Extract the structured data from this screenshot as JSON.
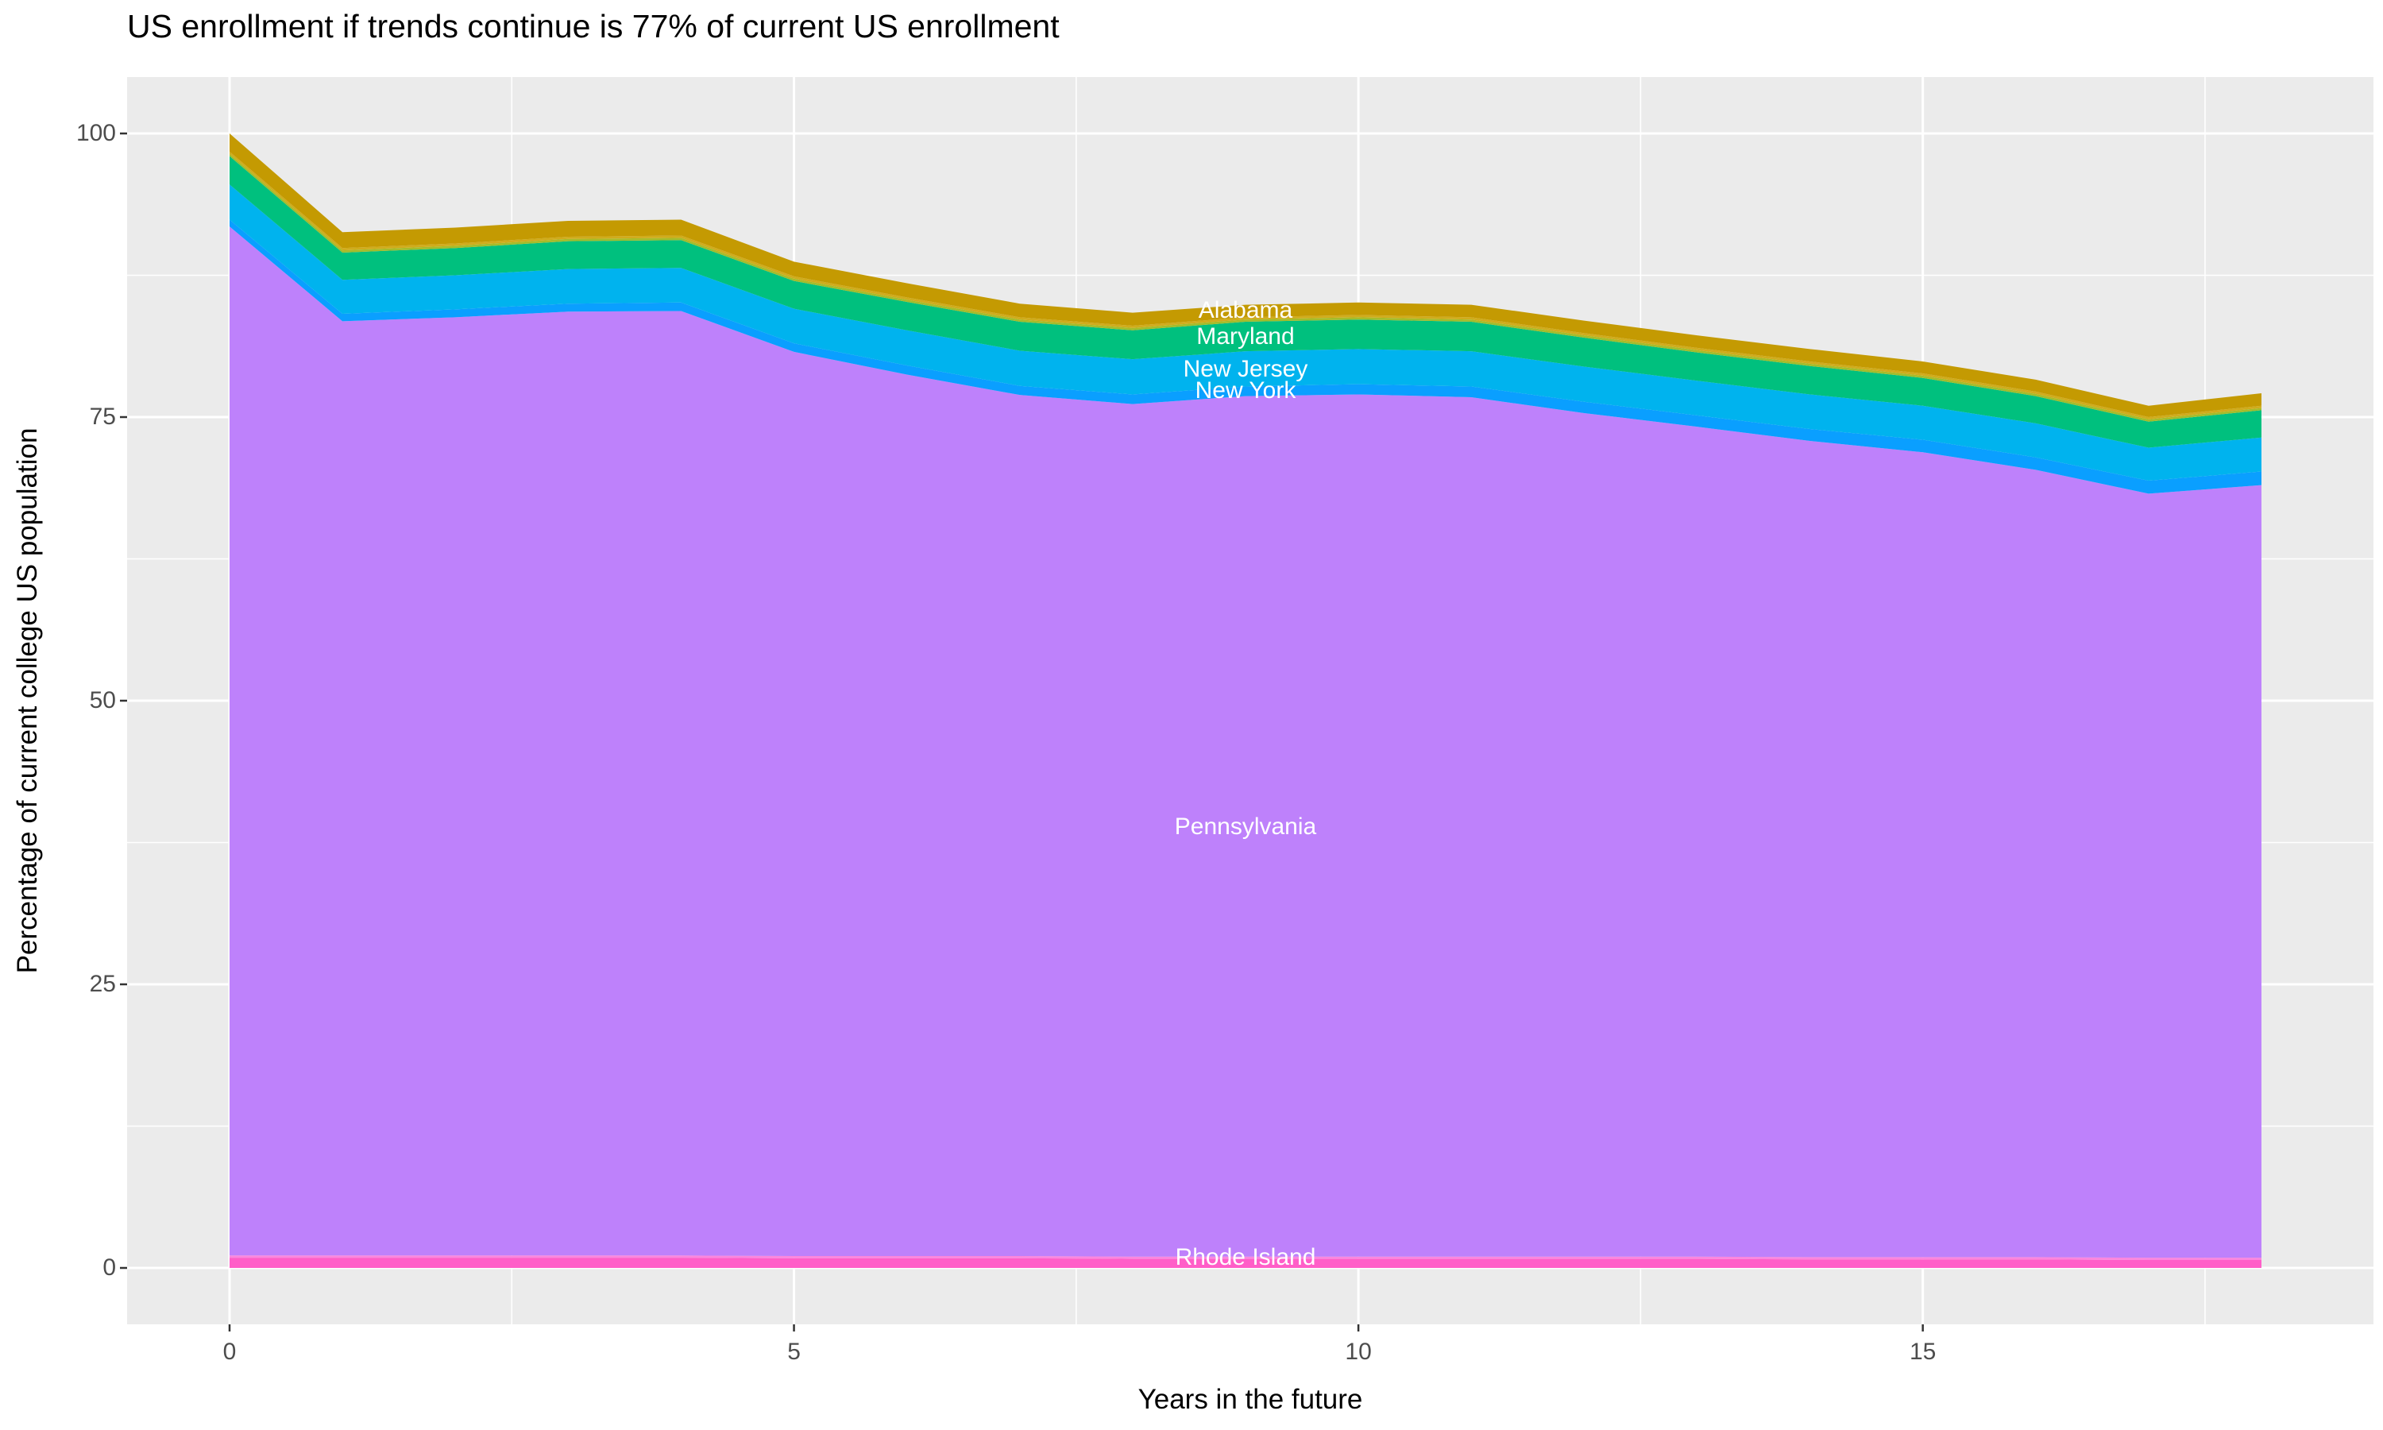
{
  "title": "US enrollment if trends continue is 77% of current US enrollment",
  "panel": {
    "background": "#EBEBEB",
    "gridline_color": "#FFFFFF",
    "tick_color": "#333333",
    "tick_label_color": "#4D4D4D"
  },
  "chart_data": {
    "type": "area",
    "stacked": true,
    "title": "US enrollment if trends continue is 77% of current US enrollment",
    "xlabel": "Years in the future",
    "ylabel": "Percentage of current college US population",
    "xlim": [
      0,
      18
    ],
    "ylim": [
      0,
      100
    ],
    "grid": "on",
    "legend": "none",
    "x": [
      0,
      1,
      2,
      3,
      4,
      5,
      6,
      7,
      8,
      9,
      10,
      11,
      12,
      13,
      14,
      15,
      16,
      17,
      18
    ],
    "series": [
      {
        "name": "Alabama",
        "labeled": true,
        "color": "#C49A02",
        "values": [
          1.6,
          1.4,
          1.4,
          1.4,
          1.4,
          1.3,
          1.25,
          1.2,
          1.15,
          1.1,
          1.1,
          1.1,
          1.1,
          1.1,
          1.1,
          1.05,
          1.05,
          1.0,
          1.1
        ]
      },
      {
        "name": "unlabeled_sliver_1",
        "labeled": false,
        "color": "#D0AC1C",
        "values": [
          0.2,
          0.2,
          0.2,
          0.2,
          0.2,
          0.2,
          0.2,
          0.2,
          0.2,
          0.2,
          0.2,
          0.2,
          0.2,
          0.2,
          0.2,
          0.2,
          0.2,
          0.2,
          0.2
        ]
      },
      {
        "name": "unlabeled_sliver_2",
        "labeled": false,
        "color": "#A4BC2A",
        "values": [
          0.2,
          0.2,
          0.2,
          0.2,
          0.2,
          0.2,
          0.2,
          0.2,
          0.2,
          0.2,
          0.2,
          0.2,
          0.2,
          0.2,
          0.2,
          0.2,
          0.2,
          0.2,
          0.2
        ]
      },
      {
        "name": "Maryland",
        "labeled": true,
        "color": "#00C07E",
        "values": [
          2.5,
          2.4,
          2.4,
          2.45,
          2.45,
          2.45,
          2.5,
          2.55,
          2.55,
          2.6,
          2.6,
          2.6,
          2.55,
          2.5,
          2.5,
          2.45,
          2.4,
          2.3,
          2.4
        ]
      },
      {
        "name": "New Jersey",
        "labeled": true,
        "color": "#00B3EE",
        "values": [
          3.1,
          3.0,
          3.0,
          3.05,
          3.05,
          3.05,
          3.1,
          3.1,
          3.1,
          3.1,
          3.1,
          3.1,
          3.1,
          3.05,
          3.05,
          3.0,
          3.0,
          2.9,
          3.0
        ]
      },
      {
        "name": "New York",
        "labeled": true,
        "color": "#0A9FFF",
        "values": [
          0.6,
          0.65,
          0.7,
          0.7,
          0.75,
          0.75,
          0.8,
          0.8,
          0.85,
          0.85,
          0.9,
          0.95,
          1.0,
          1.0,
          1.05,
          1.1,
          1.1,
          1.15,
          1.2
        ]
      },
      {
        "name": "Pennsylvania",
        "labeled": true,
        "color": "#BE81FB",
        "values": [
          90.7,
          82.35,
          82.7,
          83.2,
          83.25,
          79.7,
          77.7,
          75.9,
          75.15,
          75.85,
          76.0,
          75.75,
          74.35,
          73.15,
          71.95,
          70.95,
          69.4,
          67.35,
          68.1
        ]
      },
      {
        "name": "unlabeled_sliver_3",
        "labeled": false,
        "color": "#FB86DE",
        "values": [
          0.2,
          0.2,
          0.2,
          0.2,
          0.2,
          0.2,
          0.2,
          0.2,
          0.2,
          0.2,
          0.2,
          0.2,
          0.2,
          0.2,
          0.2,
          0.2,
          0.2,
          0.2,
          0.2
        ]
      },
      {
        "name": "Rhode Island",
        "labeled": true,
        "color": "#FF5EC8",
        "values": [
          0.9,
          0.9,
          0.9,
          0.9,
          0.9,
          0.85,
          0.85,
          0.85,
          0.8,
          0.8,
          0.8,
          0.8,
          0.8,
          0.8,
          0.75,
          0.75,
          0.75,
          0.7,
          0.7
        ]
      }
    ],
    "total_by_year": [
      100,
      91.3,
      91.7,
      92.3,
      92.4,
      88.7,
      86.8,
      85.0,
      84.2,
      84.9,
      85.1,
      84.9,
      83.5,
      82.2,
      81.0,
      79.9,
      78.3,
      76.0,
      77.1
    ],
    "area_labels": [
      {
        "text": "Alabama",
        "x": 9,
        "y": 84.4
      },
      {
        "text": "Maryland",
        "x": 9,
        "y": 82.1
      },
      {
        "text": "New Jersey",
        "x": 9,
        "y": 79.2
      },
      {
        "text": "New York",
        "x": 9,
        "y": 77.3
      },
      {
        "text": "Pennsylvania",
        "x": 9,
        "y": 38.9
      },
      {
        "text": "Rhode Island",
        "x": 9,
        "y": 0.9
      }
    ],
    "x_axis": {
      "title": "Years in the future",
      "major_ticks": [
        0,
        5,
        10,
        15
      ],
      "minor_gridlines": [
        2.5,
        7.5,
        12.5,
        17.5
      ],
      "tick_labels": [
        "0",
        "5",
        "10",
        "15"
      ]
    },
    "y_axis": {
      "title": "Percentage of current college US population",
      "major_ticks": [
        100,
        75,
        50,
        25,
        0
      ],
      "minor_gridlines": [
        87.5,
        62.5,
        37.5,
        12.5
      ],
      "tick_labels": [
        "100",
        "75",
        "50",
        "25",
        "0"
      ]
    }
  }
}
